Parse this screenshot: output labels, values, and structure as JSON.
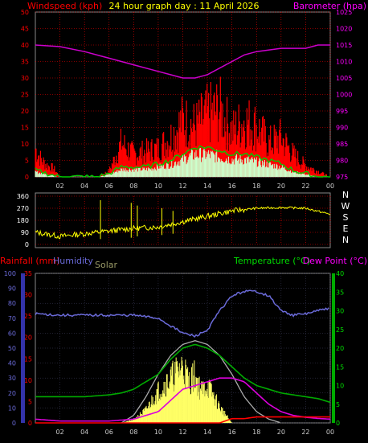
{
  "header": {
    "left": "Windspeed (kph)",
    "center": "24 hour graph day : 11 April 2026",
    "right": "Barometer (hpa)"
  },
  "colors": {
    "axisLeft": "#ff0000",
    "axisRight": "#ff00ff",
    "wind": "#ff0000",
    "gust": "#ff0000",
    "avg": "#00cc00",
    "dir": "#ffff00",
    "baro": "#cc00cc",
    "humidity": "#6a6ad8",
    "temp": "#00aa00",
    "dew": "#dd00dd",
    "solar": "#ffff66",
    "solarMax": "#aaaaaa",
    "rain": "#ff0000",
    "grid": "#ff0000",
    "dirGrid": "#cccccc"
  },
  "chart_data": [
    {
      "type": "line",
      "name": "wind",
      "x_ticks": [
        "02",
        "04",
        "06",
        "08",
        "10",
        "12",
        "14",
        "16",
        "18",
        "20",
        "22",
        "00"
      ],
      "left_axis": {
        "label": "Windspeed (kph)",
        "ticks": [
          0,
          5,
          10,
          15,
          20,
          25,
          30,
          35,
          40,
          45,
          50
        ],
        "ylim": [
          0,
          50
        ]
      },
      "right_axis": {
        "label": "Barometer (hpa)",
        "ticks": [
          975,
          980,
          985,
          990,
          995,
          1000,
          1005,
          1010,
          1015,
          1020,
          1025
        ],
        "ylim": [
          975,
          1025
        ]
      },
      "series": [
        {
          "key": "gust",
          "hours": [
            0,
            0.5,
            1,
            1.5,
            2,
            3,
            4,
            5,
            6,
            7,
            8,
            9,
            10,
            11,
            12,
            13,
            14,
            15,
            16,
            17,
            18,
            19,
            20,
            21,
            22,
            23,
            24
          ],
          "values": [
            10,
            6,
            4,
            3,
            0,
            0,
            0,
            0,
            2,
            12,
            8,
            9,
            10,
            14,
            20,
            18,
            22,
            24,
            16,
            20,
            18,
            12,
            14,
            8,
            4,
            2,
            0
          ]
        },
        {
          "key": "avg",
          "hours": [
            0,
            1,
            2,
            3,
            4,
            5,
            6,
            7,
            8,
            9,
            10,
            11,
            12,
            13,
            14,
            15,
            16,
            17,
            18,
            19,
            20,
            21,
            22,
            23,
            24
          ],
          "values": [
            2,
            1,
            0,
            0,
            0,
            0,
            1,
            3,
            3,
            3,
            4,
            5,
            7,
            9,
            9,
            8,
            7,
            7,
            6,
            5,
            4,
            2,
            1,
            0,
            0
          ]
        },
        {
          "key": "baro",
          "hours": [
            0,
            2,
            4,
            6,
            8,
            10,
            11,
            12,
            13,
            14,
            15,
            16,
            17,
            18,
            20,
            22,
            23,
            24
          ],
          "values": [
            1015,
            1014.5,
            1013,
            1011,
            1009,
            1007,
            1006,
            1005,
            1005,
            1006,
            1008,
            1010,
            1012,
            1013,
            1014,
            1014,
            1015,
            1015
          ]
        }
      ]
    },
    {
      "type": "scatter",
      "name": "direction",
      "left_ticks": [
        0,
        90,
        180,
        270,
        360
      ],
      "ylim": [
        0,
        360
      ],
      "right_labels": [
        "N",
        "W",
        "S",
        "E",
        "N"
      ],
      "series": [
        {
          "key": "dir",
          "hours": [
            0,
            2,
            4,
            6,
            8,
            10,
            12,
            14,
            16,
            18,
            20,
            22,
            24
          ],
          "values": [
            90,
            60,
            80,
            100,
            120,
            130,
            170,
            210,
            250,
            270,
            275,
            270,
            225
          ]
        }
      ]
    },
    {
      "type": "line",
      "name": "climate",
      "labels": {
        "rain": "Rainfall (mm)",
        "humidity": "Humidity",
        "solar": "Solar",
        "temperature": "Temperature (°C)",
        "dew": "Dew Point (°C)"
      },
      "humidity_axis": {
        "ticks": [
          0,
          10,
          20,
          30,
          40,
          50,
          60,
          70,
          80,
          90,
          100
        ],
        "ylim": [
          0,
          100
        ]
      },
      "rain_axis": {
        "ticks": [
          0,
          5,
          10,
          15,
          20,
          25,
          30,
          35
        ],
        "ylim": [
          0,
          35
        ]
      },
      "temp_axis": {
        "ticks": [
          0,
          5,
          10,
          15,
          20,
          25,
          30,
          35,
          40
        ],
        "ylim": [
          0,
          40
        ]
      },
      "series": [
        {
          "key": "humidity",
          "hours": [
            0,
            2,
            4,
            6,
            8,
            9,
            10,
            11,
            12,
            13,
            14,
            15,
            16,
            17,
            18,
            19,
            20,
            21,
            22,
            23,
            24
          ],
          "values": [
            73,
            72,
            72,
            72,
            72,
            71,
            70,
            65,
            60,
            58,
            62,
            75,
            85,
            88,
            88,
            85,
            75,
            72,
            73,
            75,
            77
          ]
        },
        {
          "key": "temperature",
          "hours": [
            0,
            2,
            4,
            6,
            7,
            8,
            9,
            10,
            11,
            12,
            13,
            14,
            15,
            16,
            17,
            18,
            19,
            20,
            21,
            22,
            23,
            24
          ],
          "values": [
            7,
            7,
            7,
            7.5,
            8,
            9,
            11,
            13,
            17,
            20,
            21,
            20,
            18,
            15,
            12,
            10,
            9,
            8,
            7.5,
            7,
            6.5,
            5.5
          ]
        },
        {
          "key": "dew",
          "hours": [
            0,
            2,
            4,
            6,
            8,
            10,
            11,
            12,
            13,
            14,
            15,
            16,
            17,
            18,
            19,
            20,
            21,
            22,
            23,
            24
          ],
          "values": [
            1,
            0.5,
            0.5,
            0.5,
            1,
            3,
            6,
            9,
            10,
            11,
            12,
            12,
            11,
            8,
            5,
            3,
            2,
            1.5,
            1.2,
            1
          ]
        },
        {
          "key": "solarMax",
          "hours": [
            7,
            8,
            9,
            10,
            11,
            12,
            13,
            14,
            15,
            16,
            17,
            18,
            19,
            20
          ],
          "values": [
            0,
            2,
            7,
            13,
            18,
            21,
            22,
            21,
            18,
            13,
            7,
            3,
            1,
            0
          ]
        },
        {
          "key": "solar",
          "hours": [
            7,
            8,
            9,
            10,
            11,
            11.5,
            12,
            12.5,
            13,
            13.5,
            14,
            15,
            16
          ],
          "values": [
            0,
            1,
            4,
            10,
            14,
            16,
            18,
            13,
            15,
            10,
            12,
            5,
            0
          ]
        },
        {
          "key": "rain",
          "hours": [
            0,
            14,
            15,
            16,
            17,
            18,
            20,
            22,
            24
          ],
          "values": [
            0,
            0,
            0,
            1,
            1,
            1.4,
            1.4,
            1.4,
            1.4
          ]
        }
      ]
    }
  ]
}
